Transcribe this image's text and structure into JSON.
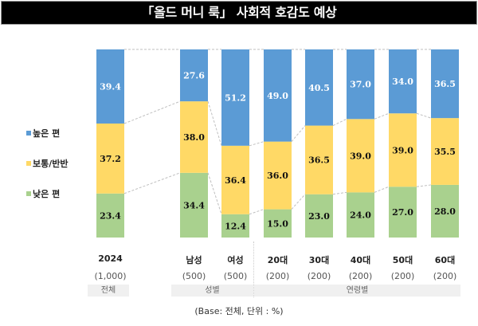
{
  "title": "「올드 머니 룩」 사회적 호감도 예상",
  "note": "(Base: 전체, 단위 : %)",
  "legend": [
    {
      "label": "높은 편",
      "color": "#5b9bd5"
    },
    {
      "label": "보통/반반",
      "color": "#ffd966"
    },
    {
      "label": "낮은 편",
      "color": "#a9d18e"
    }
  ],
  "groups": [
    {
      "label": "전체"
    },
    {
      "label": "성별"
    },
    {
      "label": "연령별"
    }
  ],
  "chart_data": {
    "type": "bar",
    "stacked": true,
    "title": "「올드 머니 룩」 사회적 호감도 예상",
    "xlabel": "",
    "ylabel": "",
    "ylim": [
      0,
      100
    ],
    "unit": "%",
    "categories": [
      "2024",
      "남성",
      "여성",
      "20대",
      "30대",
      "40대",
      "50대",
      "60대"
    ],
    "sample_sizes": [
      "(1,000)",
      "(500)",
      "(500)",
      "(200)",
      "(200)",
      "(200)",
      "(200)",
      "(200)"
    ],
    "category_groups": [
      "전체",
      "성별",
      "성별",
      "연령별",
      "연령별",
      "연령별",
      "연령별",
      "연령별"
    ],
    "series": [
      {
        "name": "낮은 편",
        "color": "#a9d18e",
        "values": [
          23.4,
          34.4,
          12.4,
          15.0,
          23.0,
          24.0,
          27.0,
          28.0
        ]
      },
      {
        "name": "보통/반반",
        "color": "#ffd966",
        "values": [
          37.2,
          38.0,
          36.4,
          36.0,
          36.5,
          39.0,
          39.0,
          35.5
        ]
      },
      {
        "name": "높은 편",
        "color": "#5b9bd5",
        "values": [
          39.4,
          27.6,
          51.2,
          49.0,
          40.5,
          37.0,
          34.0,
          36.5
        ]
      }
    ],
    "legend_position": "left",
    "grid": false,
    "connector_lines": true
  }
}
